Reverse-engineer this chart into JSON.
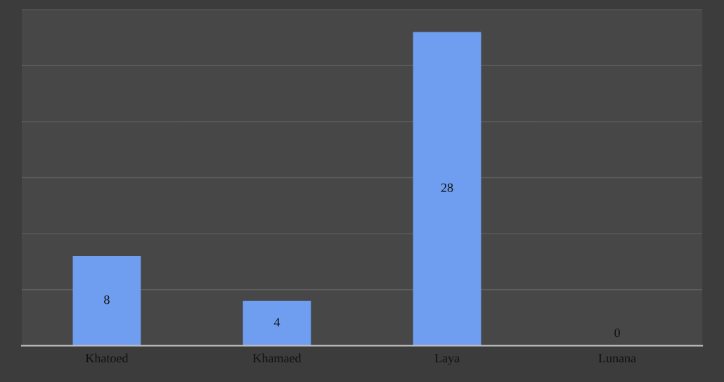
{
  "chart_data": {
    "type": "bar",
    "categories": [
      "Khatoed",
      "Khamaed",
      "Laya",
      "Lunana"
    ],
    "values": [
      8,
      4,
      28,
      0
    ],
    "color": "#6f9ef0",
    "ylim": [
      0,
      30
    ],
    "yticks": [
      {
        "value": 0,
        "label": null
      },
      {
        "value": 5,
        "label": null
      },
      {
        "value": 10,
        "label": null
      },
      {
        "value": 15,
        "label": null
      },
      {
        "value": 20,
        "label": null
      },
      {
        "value": 25,
        "label": null
      },
      {
        "value": 30,
        "label": null
      }
    ],
    "tick_labels": "x",
    "grid": "y",
    "data_labels": true
  }
}
